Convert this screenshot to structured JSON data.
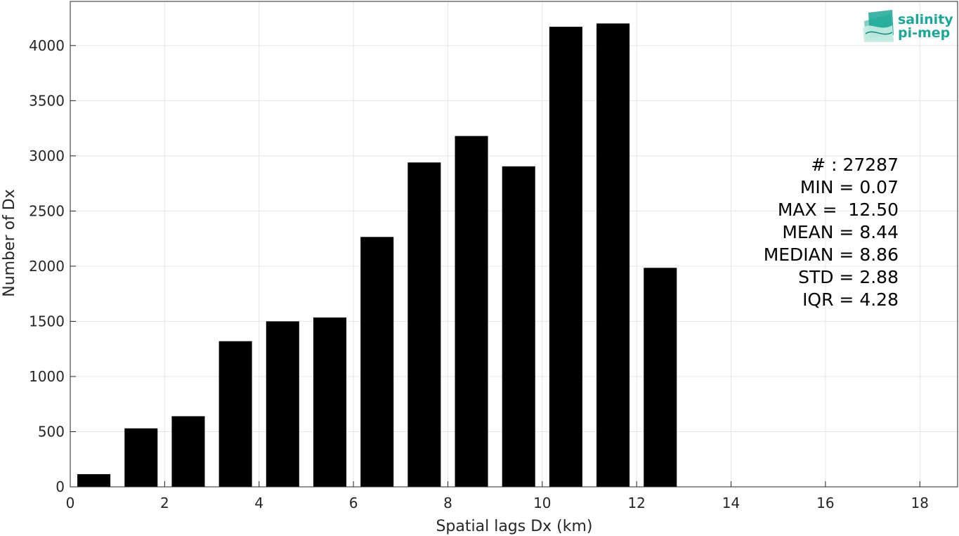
{
  "chart_data": {
    "type": "bar",
    "title": "",
    "xlabel": "Spatial lags Dx (km)",
    "ylabel": "Number of Dx",
    "x": [
      0.5,
      1.5,
      2.5,
      3.5,
      4.5,
      5.5,
      6.5,
      7.5,
      8.5,
      9.5,
      10.5,
      11.5,
      12.5
    ],
    "values": [
      115,
      530,
      640,
      1320,
      1500,
      1535,
      2265,
      2940,
      3180,
      2905,
      4170,
      4200,
      1985
    ],
    "bar_width": 0.7,
    "xlim": [
      0,
      18.8
    ],
    "ylim": [
      0,
      4400
    ],
    "xticks": [
      0,
      2,
      4,
      6,
      8,
      10,
      12,
      14,
      16,
      18
    ],
    "yticks": [
      0,
      500,
      1000,
      1500,
      2000,
      2500,
      3000,
      3500,
      4000
    ],
    "grid": true,
    "bar_color": "#000000",
    "stats": [
      "# : 27287",
      "MIN = 0.07",
      "MAX =  12.50",
      "MEAN = 8.44",
      "MEDIAN = 8.86",
      "STD = 2.88",
      "IQR = 4.28"
    ]
  },
  "logo": {
    "line1": "salinity",
    "line2": "pi-mep",
    "color": "#1aa898"
  }
}
